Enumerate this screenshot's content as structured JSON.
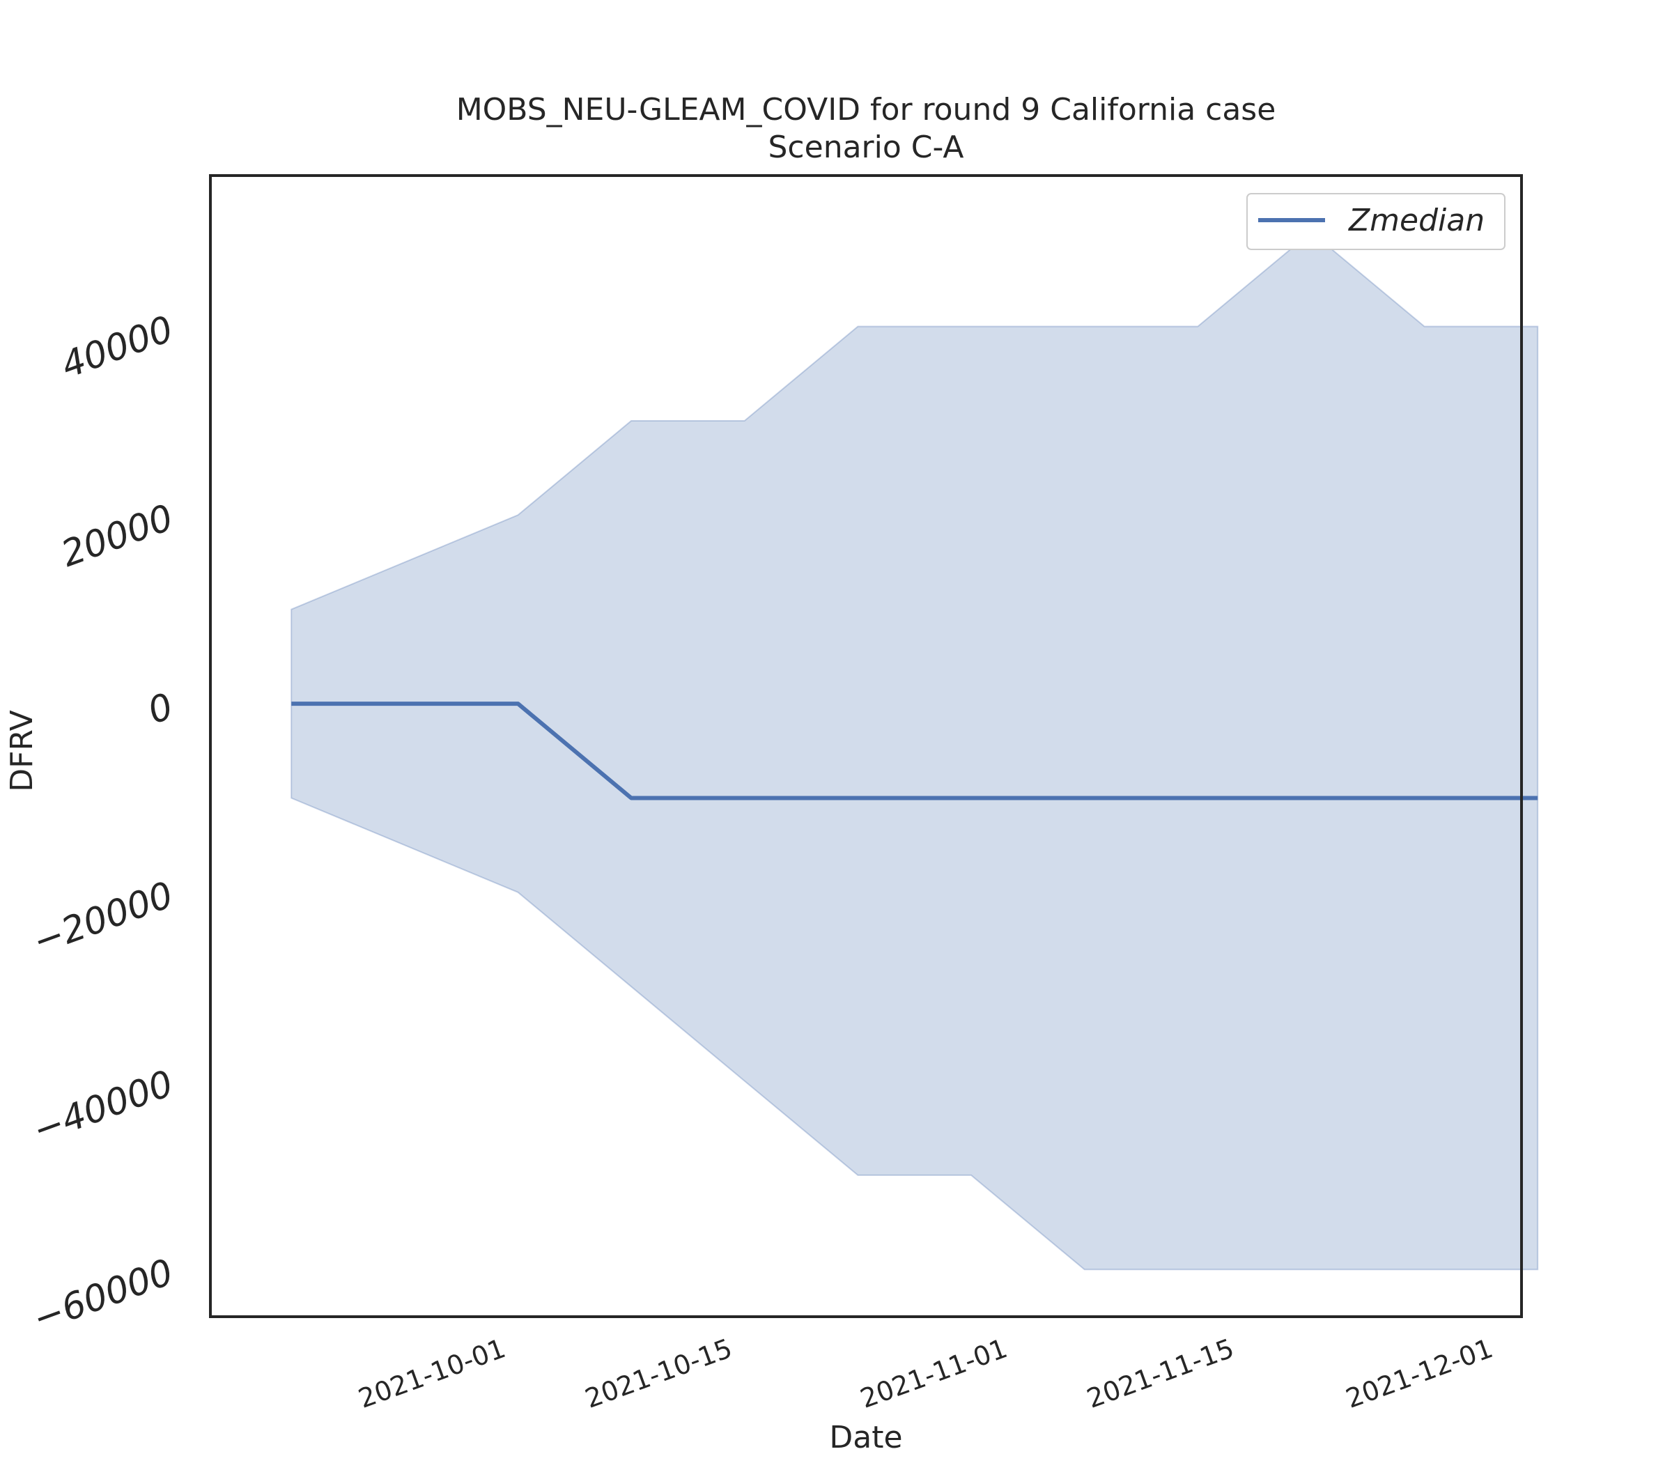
{
  "chart_data": {
    "type": "line",
    "title": "MOBS_NEU-GLEAM_COVID for round 9 California case",
    "subtitle": "Scenario C-A",
    "xlabel": "Date",
    "ylabel": "DFRV",
    "x_ticks": [
      "2021-10-01",
      "2021-10-15",
      "2021-11-01",
      "2021-11-15",
      "2021-12-01"
    ],
    "y_ticks": [
      "40000",
      "20000",
      "0",
      "−20000",
      "−40000",
      "−60000"
    ],
    "y_tick_values": [
      40000,
      20000,
      0,
      -20000,
      -40000,
      -60000
    ],
    "x_range": [
      "2021-09-13",
      "2021-12-03"
    ],
    "ylim": [
      -65000,
      56000
    ],
    "grid": false,
    "legend_position": "top-right",
    "series": [
      {
        "name": "Zmedian",
        "color": "#4c72b0",
        "x": [
          "2021-09-18",
          "2021-10-02",
          "2021-10-09",
          "2021-10-16",
          "2021-10-23",
          "2021-10-30",
          "2021-11-06",
          "2021-11-13",
          "2021-11-20",
          "2021-11-27",
          "2021-12-04"
        ],
        "y": [
          0,
          0,
          -10000,
          -10000,
          -10000,
          -10000,
          -10000,
          -10000,
          -10000,
          -10000,
          -10000
        ],
        "band_lower": [
          -10000,
          -20000,
          -30000,
          -40000,
          -50000,
          -50000,
          -60000,
          -60000,
          -60000,
          -60000,
          -60000
        ],
        "band_upper": [
          10000,
          20000,
          30000,
          30000,
          40000,
          40000,
          40000,
          40000,
          50000,
          40000,
          40000
        ],
        "band_color": "#4c72b0"
      }
    ]
  }
}
